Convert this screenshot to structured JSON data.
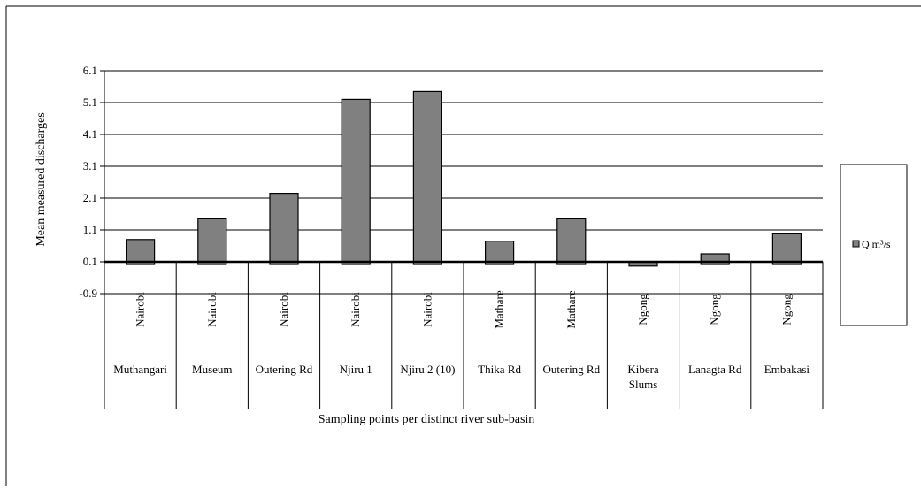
{
  "chart_data": {
    "type": "bar",
    "title": "",
    "xlabel": "Sampling points per distinct river sub-basin",
    "ylabel": "Mean measured discharges",
    "yticks": [
      "6.1",
      "5.1",
      "4.1",
      "3.1",
      "2.1",
      "1.1",
      "0.1",
      "-0.9"
    ],
    "ylim": [
      -0.9,
      6.1
    ],
    "grid": true,
    "legend_position": "right",
    "basins": [
      "Nairobi",
      "Nairobi",
      "Nairobi",
      "Nairobi",
      "Nairobi",
      "Mathare",
      "Mathare",
      "Ngong",
      "Ngong",
      "Ngong"
    ],
    "categories": [
      "Muthangari",
      "Museum",
      "Outering Rd",
      "Njiru 1",
      "Njiru 2 (10)",
      "Thika Rd",
      "Outering Rd",
      "Kibera Slums",
      "Lanagta Rd",
      "Embakasi"
    ],
    "series": [
      {
        "name": "Q m³/s",
        "color": "#808080",
        "values": [
          0.8,
          1.45,
          2.25,
          5.2,
          5.45,
          0.75,
          1.45,
          0.05,
          0.35,
          1.0
        ]
      }
    ]
  }
}
